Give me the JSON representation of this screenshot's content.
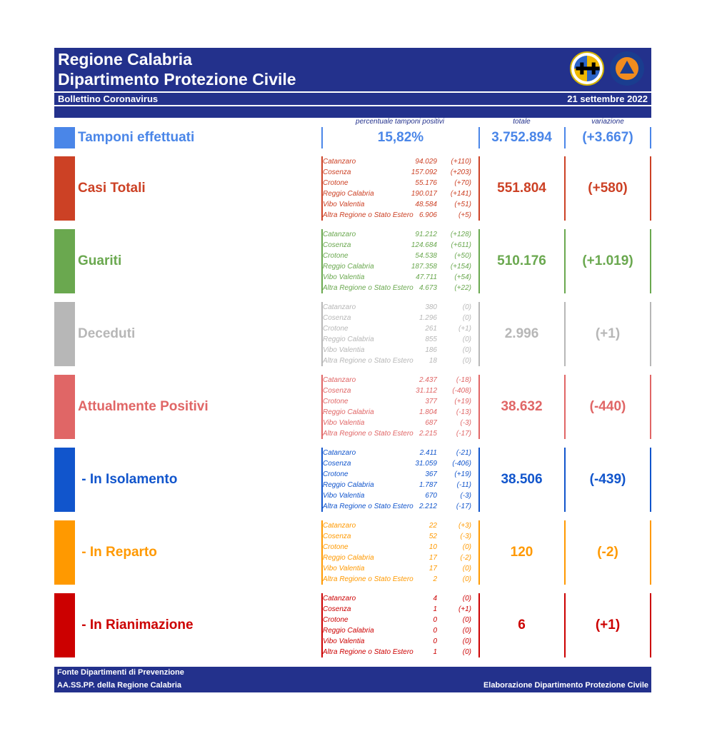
{
  "header": {
    "title1": "Regione Calabria",
    "title2": "Dipartimento Protezione Civile",
    "bulletin": "Bollettino Coronavirus",
    "date": "21 settembre 2022"
  },
  "columns": {
    "perc_label": "percentuale tamponi positivi",
    "total_label": "totale",
    "var_label": "variazione"
  },
  "tamponi": {
    "label": "Tamponi effettuati",
    "perc": "15,82%",
    "total": "3.752.894",
    "var": "(+3.667)",
    "color": "#4a86e8"
  },
  "sections": [
    {
      "key": "casi",
      "label": "Casi Totali",
      "color": "#cc4125",
      "total": "551.804",
      "var": "(+580)",
      "rows": [
        {
          "p": "Catanzaro",
          "v": "94.029",
          "d": "(+110)"
        },
        {
          "p": "Cosenza",
          "v": "157.092",
          "d": "(+203)"
        },
        {
          "p": "Crotone",
          "v": "55.176",
          "d": "(+70)"
        },
        {
          "p": "Reggio Calabria",
          "v": "190.017",
          "d": "(+141)"
        },
        {
          "p": "Vibo Valentia",
          "v": "48.584",
          "d": "(+51)"
        },
        {
          "p": "Altra Regione o Stato Estero",
          "v": "6.906",
          "d": "(+5)"
        }
      ]
    },
    {
      "key": "guariti",
      "label": "Guariti",
      "color": "#6aa84f",
      "total": "510.176",
      "var": "(+1.019)",
      "rows": [
        {
          "p": "Catanzaro",
          "v": "91.212",
          "d": "(+128)"
        },
        {
          "p": "Cosenza",
          "v": "124.684",
          "d": "(+611)"
        },
        {
          "p": "Crotone",
          "v": "54.538",
          "d": "(+50)"
        },
        {
          "p": "Reggio Calabria",
          "v": "187.358",
          "d": "(+154)"
        },
        {
          "p": "Vibo Valentia",
          "v": "47.711",
          "d": "(+54)"
        },
        {
          "p": "Altra Regione o Stato Estero",
          "v": "4.673",
          "d": "(+22)"
        }
      ]
    },
    {
      "key": "deceduti",
      "label": "Deceduti",
      "color": "#b7b7b7",
      "total": "2.996",
      "var": "(+1)",
      "rows": [
        {
          "p": "Catanzaro",
          "v": "380",
          "d": "(0)"
        },
        {
          "p": "Cosenza",
          "v": "1.296",
          "d": "(0)"
        },
        {
          "p": "Crotone",
          "v": "261",
          "d": "(+1)"
        },
        {
          "p": "Reggio Calabria",
          "v": "855",
          "d": "(0)"
        },
        {
          "p": "Vibo Valentia",
          "v": "186",
          "d": "(0)"
        },
        {
          "p": "Altra Regione o Stato Estero",
          "v": "18",
          "d": "(0)"
        }
      ]
    },
    {
      "key": "positivi",
      "label": "Attualmente Positivi",
      "color": "#e06666",
      "total": "38.632",
      "var": "(-440)",
      "rows": [
        {
          "p": "Catanzaro",
          "v": "2.437",
          "d": "(-18)"
        },
        {
          "p": "Cosenza",
          "v": "31.112",
          "d": "(-408)"
        },
        {
          "p": "Crotone",
          "v": "377",
          "d": "(+19)"
        },
        {
          "p": "Reggio Calabria",
          "v": "1.804",
          "d": "(-13)"
        },
        {
          "p": "Vibo Valentia",
          "v": "687",
          "d": "(-3)"
        },
        {
          "p": "Altra Regione o Stato Estero",
          "v": "2.215",
          "d": "(-17)"
        }
      ]
    },
    {
      "key": "isolamento",
      "label": " - In Isolamento",
      "color": "#1155cc",
      "total": "38.506",
      "var": "(-439)",
      "rows": [
        {
          "p": "Catanzaro",
          "v": "2.411",
          "d": "(-21)"
        },
        {
          "p": "Cosenza",
          "v": "31.059",
          "d": "(-406)"
        },
        {
          "p": "Crotone",
          "v": "367",
          "d": "(+19)"
        },
        {
          "p": "Reggio Calabria",
          "v": "1.787",
          "d": "(-11)"
        },
        {
          "p": "Vibo Valentia",
          "v": "670",
          "d": "(-3)"
        },
        {
          "p": "Altra Regione o Stato Estero",
          "v": "2.212",
          "d": "(-17)"
        }
      ]
    },
    {
      "key": "reparto",
      "label": " - In Reparto",
      "color": "#ff9900",
      "total": "120",
      "var": "(-2)",
      "rows": [
        {
          "p": "Catanzaro",
          "v": "22",
          "d": "(+3)"
        },
        {
          "p": "Cosenza",
          "v": "52",
          "d": "(-3)"
        },
        {
          "p": "Crotone",
          "v": "10",
          "d": "(0)"
        },
        {
          "p": "Reggio Calabria",
          "v": "17",
          "d": "(-2)"
        },
        {
          "p": "Vibo Valentia",
          "v": "17",
          "d": "(0)"
        },
        {
          "p": "Altra Regione o Stato Estero",
          "v": "2",
          "d": "(0)"
        }
      ]
    },
    {
      "key": "rianimazione",
      "label": " - In Rianimazione",
      "color": "#cc0000",
      "total": "6",
      "var": "(+1)",
      "rows": [
        {
          "p": "Catanzaro",
          "v": "4",
          "d": "(0)"
        },
        {
          "p": "Cosenza",
          "v": "1",
          "d": "(+1)"
        },
        {
          "p": "Crotone",
          "v": "0",
          "d": "(0)"
        },
        {
          "p": "Reggio Calabria",
          "v": "0",
          "d": "(0)"
        },
        {
          "p": "Vibo Valentia",
          "v": "0",
          "d": "(0)"
        },
        {
          "p": "Altra Regione o Stato Estero",
          "v": "1",
          "d": "(0)"
        }
      ]
    }
  ],
  "footer": {
    "line1": "Fonte Dipartimenti di Prevenzione",
    "line2": "AA.SS.PP.  della Regione Calabria",
    "credit": "Elaborazione Dipartimento Protezione Civile"
  }
}
